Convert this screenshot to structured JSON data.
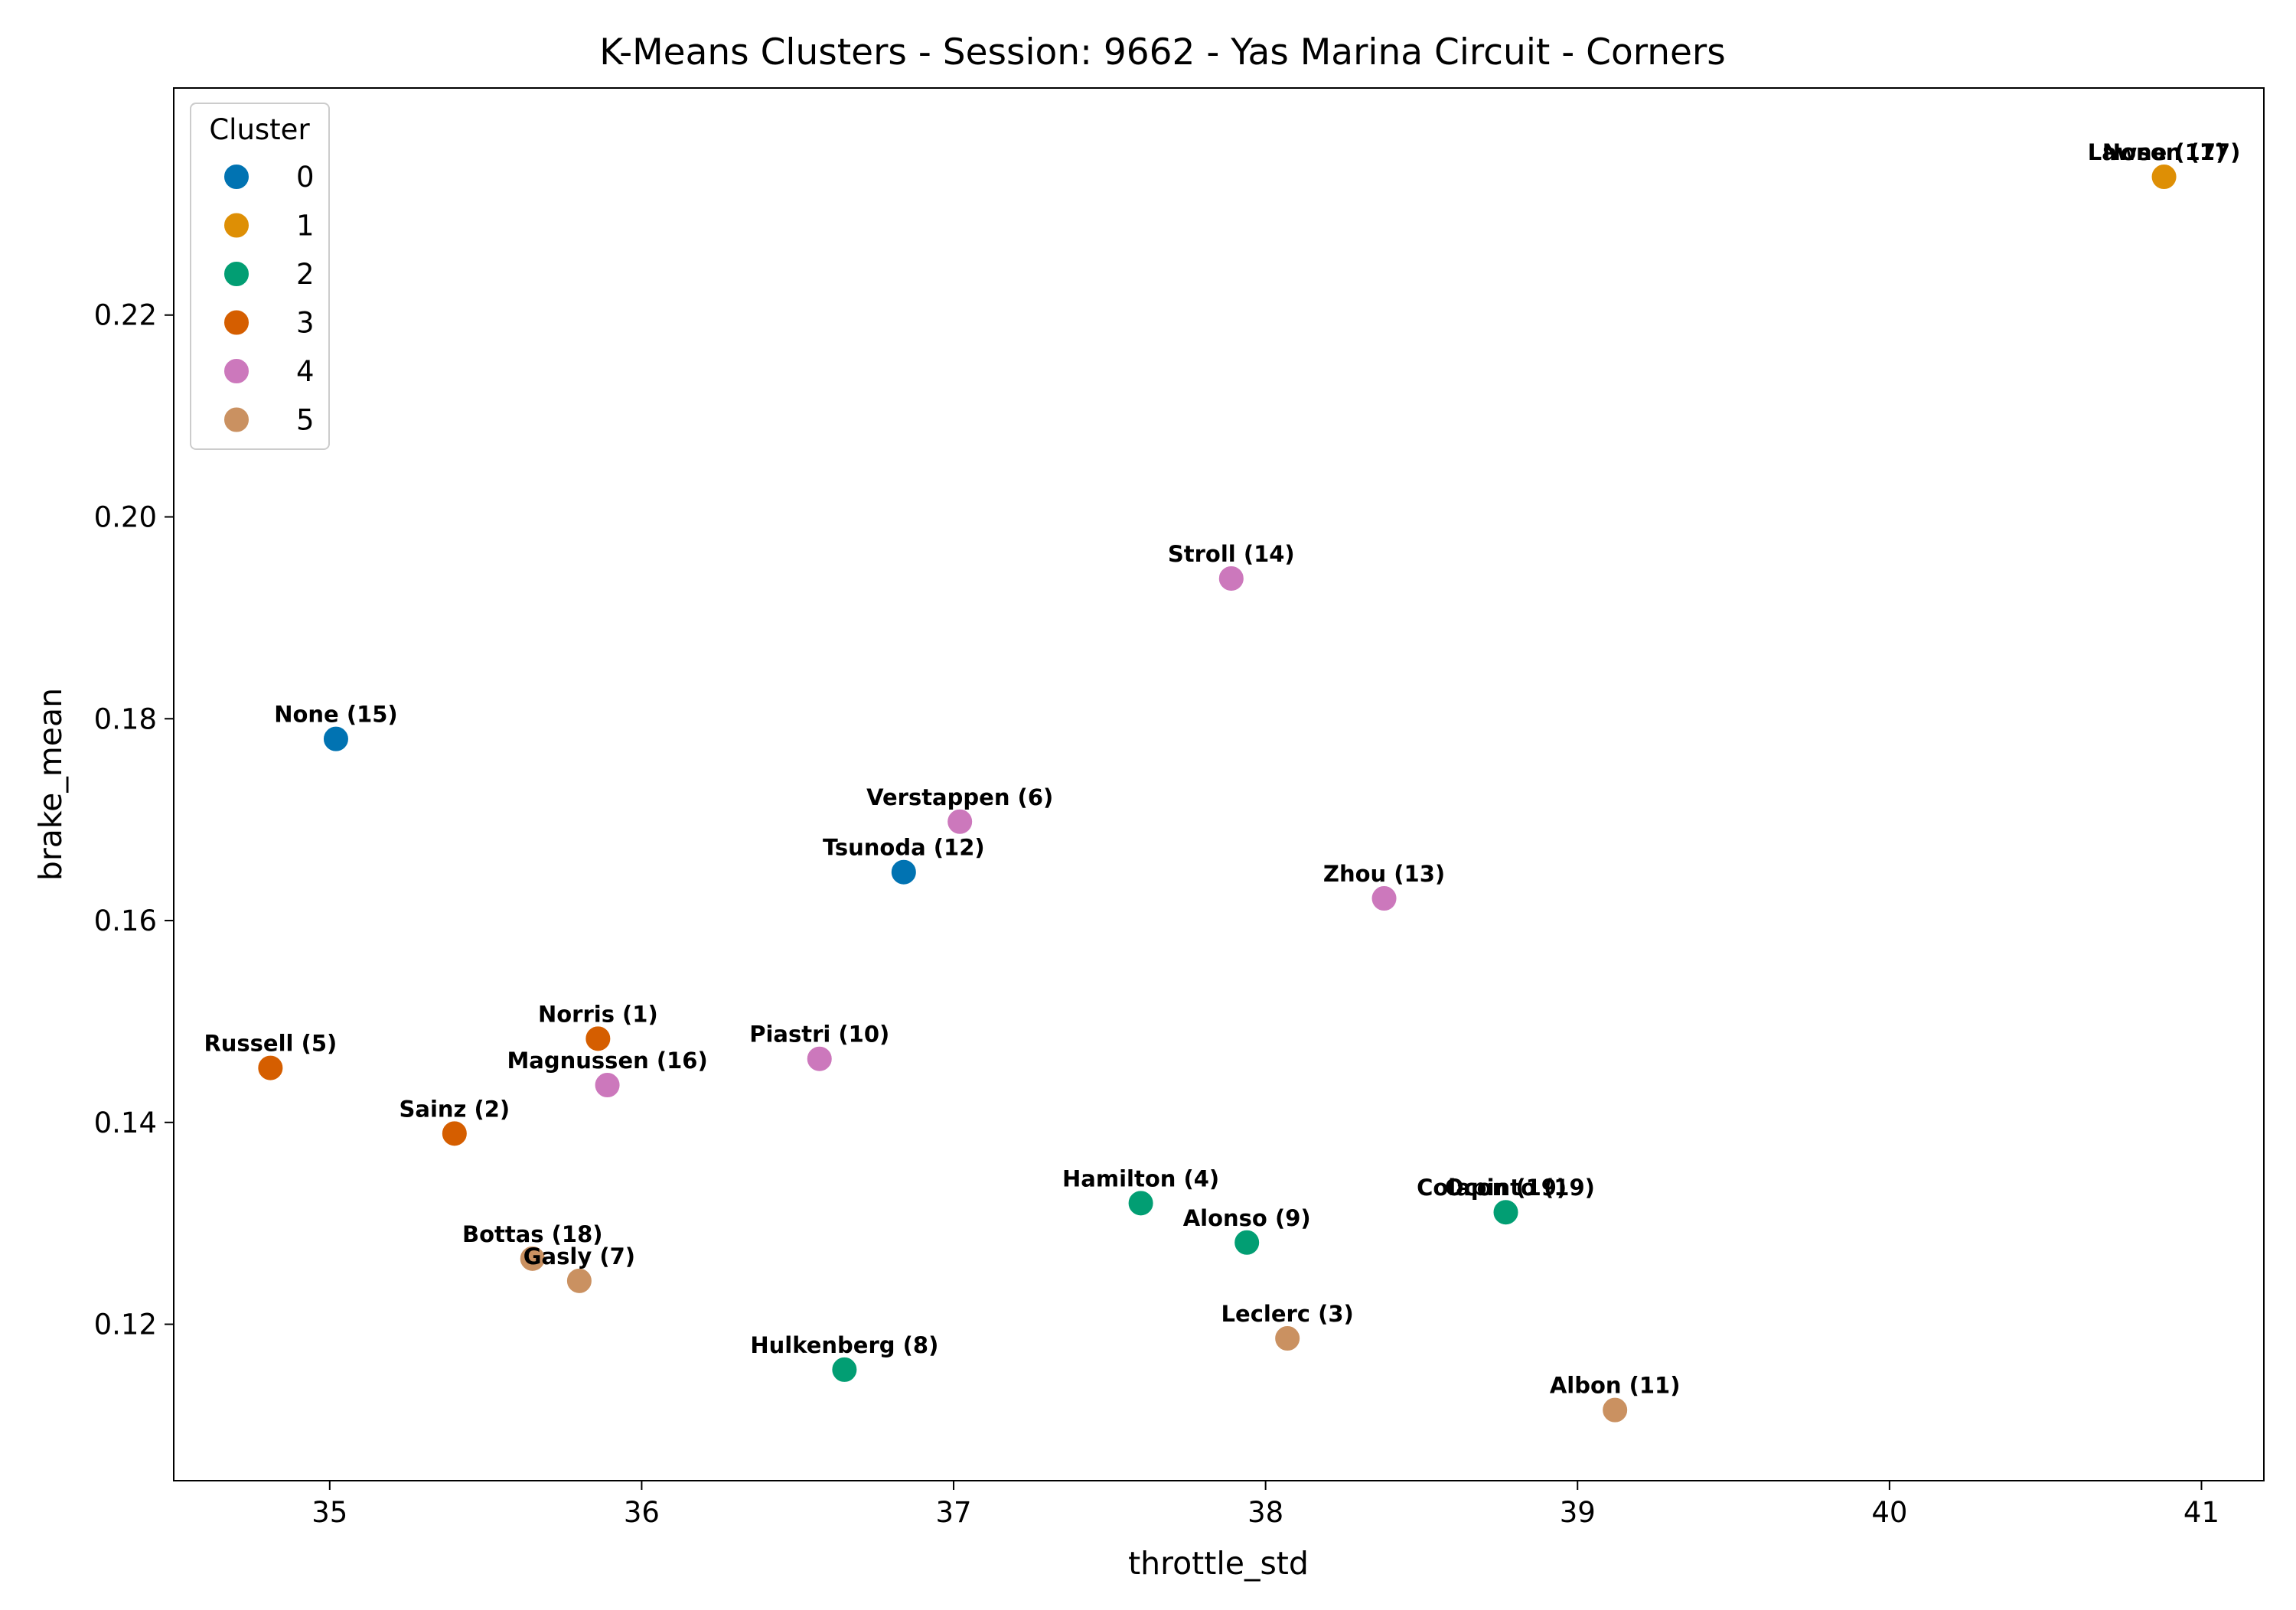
{
  "chart_data": {
    "type": "scatter",
    "title": "K-Means Clusters - Session: 9662 - Yas Marina Circuit - Corners",
    "xlabel": "throttle_std",
    "ylabel": "brake_mean",
    "xlim": [
      34.5,
      41.2
    ],
    "ylim": [
      0.1045,
      0.2425
    ],
    "xticks": [
      35,
      36,
      37,
      38,
      39,
      40,
      41
    ],
    "yticks": [
      0.12,
      0.14,
      0.16,
      0.18,
      0.2,
      0.22
    ],
    "xtick_labels": [
      "35",
      "36",
      "37",
      "38",
      "39",
      "40",
      "41"
    ],
    "ytick_labels": [
      "0.12",
      "0.14",
      "0.16",
      "0.18",
      "0.20",
      "0.22"
    ],
    "grid": false,
    "legend": {
      "title": "Cluster",
      "position": "top-left",
      "entries": [
        {
          "label": "0",
          "color": "#0173b2"
        },
        {
          "label": "1",
          "color": "#de8f05"
        },
        {
          "label": "2",
          "color": "#029e73"
        },
        {
          "label": "3",
          "color": "#d55e00"
        },
        {
          "label": "4",
          "color": "#cc78bc"
        },
        {
          "label": "5",
          "color": "#ca9161"
        }
      ]
    },
    "points": [
      {
        "label": "None (15)",
        "x": 35.02,
        "y": 0.178,
        "cluster": 0
      },
      {
        "label": "Tsunoda (12)",
        "x": 36.84,
        "y": 0.1648,
        "cluster": 0
      },
      {
        "label": "Lawson (17)",
        "x": 40.88,
        "y": 0.2337,
        "cluster": 1
      },
      {
        "label": "None (17)",
        "x": 40.88,
        "y": 0.2337,
        "cluster": 1
      },
      {
        "label": "Hamilton (4)",
        "x": 37.6,
        "y": 0.132,
        "cluster": 2
      },
      {
        "label": "Alonso (9)",
        "x": 37.94,
        "y": 0.1281,
        "cluster": 2
      },
      {
        "label": "Colapinto (19)",
        "x": 38.77,
        "y": 0.1311,
        "cluster": 2
      },
      {
        "label": "Ocon (19)",
        "x": 38.77,
        "y": 0.1311,
        "cluster": 2
      },
      {
        "label": "Hulkenberg (8)",
        "x": 36.65,
        "y": 0.1155,
        "cluster": 2
      },
      {
        "label": "Norris (1)",
        "x": 35.86,
        "y": 0.1483,
        "cluster": 3
      },
      {
        "label": "Russell (5)",
        "x": 34.81,
        "y": 0.1454,
        "cluster": 3
      },
      {
        "label": "Sainz (2)",
        "x": 35.4,
        "y": 0.1389,
        "cluster": 3
      },
      {
        "label": "Stroll (14)",
        "x": 37.89,
        "y": 0.1939,
        "cluster": 4
      },
      {
        "label": "Verstappen (6)",
        "x": 37.02,
        "y": 0.1698,
        "cluster": 4
      },
      {
        "label": "Zhou (13)",
        "x": 38.38,
        "y": 0.1622,
        "cluster": 4
      },
      {
        "label": "Piastri (10)",
        "x": 36.57,
        "y": 0.1463,
        "cluster": 4
      },
      {
        "label": "Magnussen (16)",
        "x": 35.89,
        "y": 0.1437,
        "cluster": 4
      },
      {
        "label": "Bottas (18)",
        "x": 35.65,
        "y": 0.1265,
        "cluster": 5
      },
      {
        "label": "Gasly (7)",
        "x": 35.8,
        "y": 0.1243,
        "cluster": 5
      },
      {
        "label": "Leclerc (3)",
        "x": 38.07,
        "y": 0.1186,
        "cluster": 5
      },
      {
        "label": "Albon (11)",
        "x": 39.12,
        "y": 0.1115,
        "cluster": 5
      }
    ]
  }
}
